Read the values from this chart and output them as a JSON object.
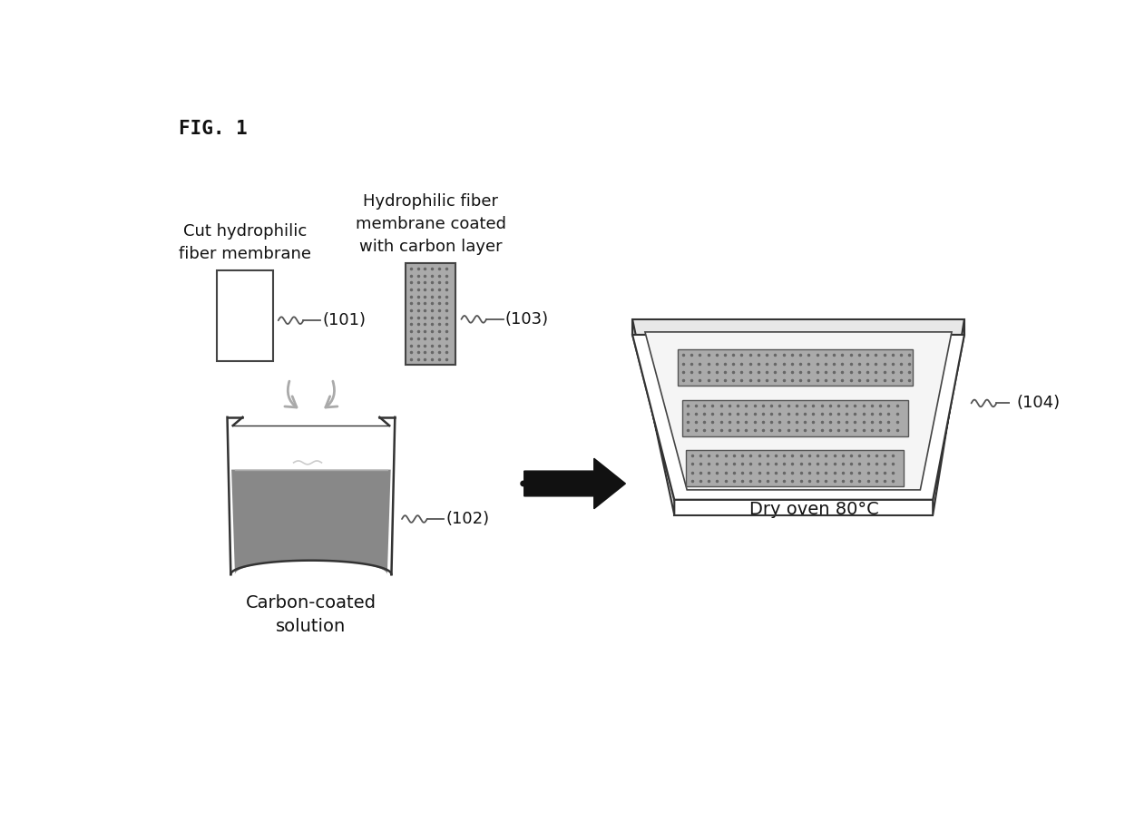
{
  "fig_label": "FIG. 1",
  "label_101": "(101)",
  "label_102": "(102)",
  "label_103": "(103)",
  "label_104": "(104)",
  "text_cut_fiber": "Cut hydrophilic\nfiber membrane",
  "text_coated": "Hydrophilic fiber\nmembrane coated\nwith carbon layer",
  "text_carbon_solution": "Carbon-coated\nsolution",
  "text_dry_oven": "Dry oven 80°C",
  "bg_color": "#ffffff",
  "dark_gray": "#999999",
  "medium_gray": "#bbbbbb",
  "light_gray": "#dddddd",
  "text_color": "#111111",
  "font_size_label": 13,
  "font_size_text": 13,
  "font_size_fig": 15
}
